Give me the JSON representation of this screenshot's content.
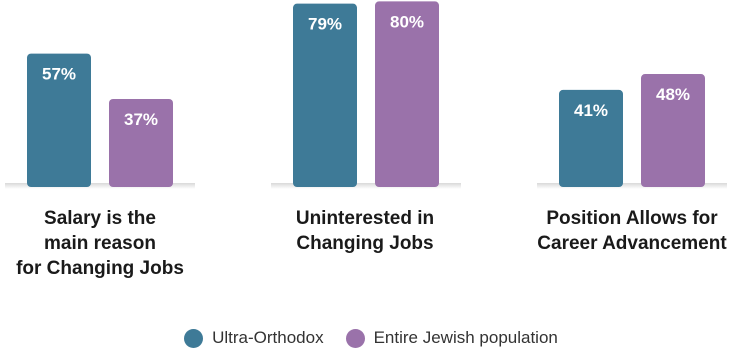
{
  "colors": {
    "ultra_orthodox": "#3e7a97",
    "entire_jewish": "#9a72aa"
  },
  "chart_data": {
    "type": "bar",
    "categories": [
      "Salary is the\nmain reason\nfor Changing Jobs",
      "Uninterested in\nChanging Jobs",
      "Position Allows for\nCareer Advancement"
    ],
    "series": [
      {
        "name": "Ultra-Orthodox",
        "values": [
          57,
          79,
          41
        ],
        "labels": [
          "57%",
          "79%",
          "41%"
        ]
      },
      {
        "name": "Entire Jewish population",
        "values": [
          37,
          80,
          48
        ],
        "labels": [
          "37%",
          "80%",
          "48%"
        ]
      }
    ],
    "ylim": [
      0,
      100
    ],
    "grid": false,
    "legend": "bottom"
  }
}
